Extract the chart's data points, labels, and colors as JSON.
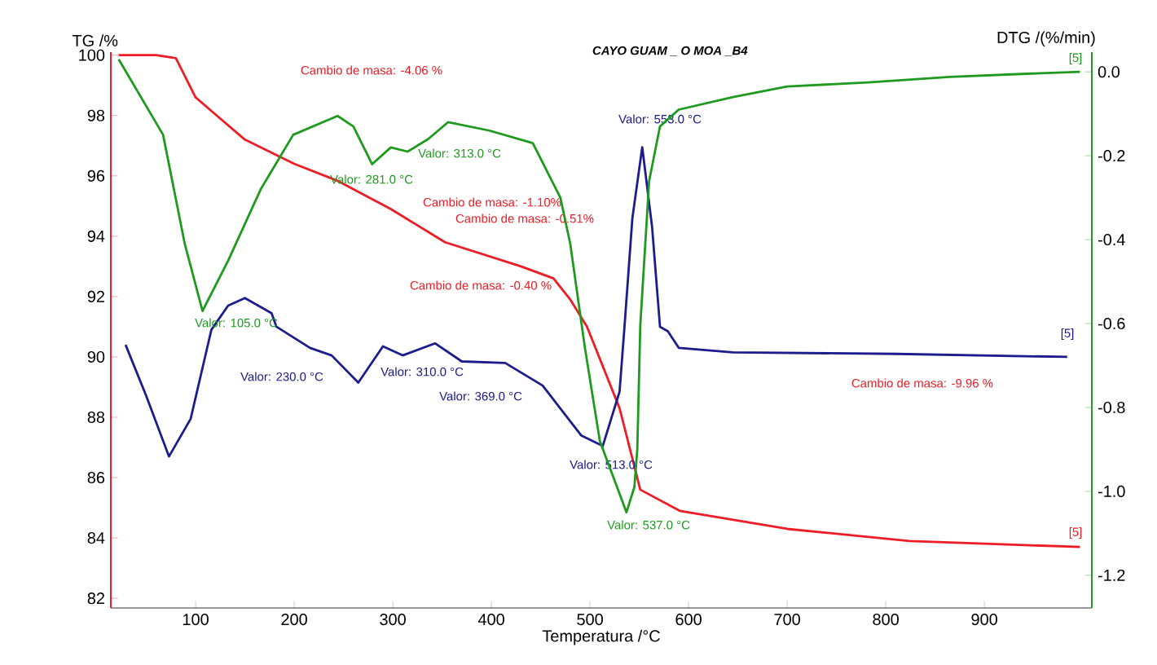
{
  "chart_data": {
    "type": "line",
    "title": "CAYO GUAM _ O MOA _B4",
    "xlabel": "Temperatura /°C",
    "ylabel": "TG /%",
    "y2label": "DTG /(%/min)",
    "xlim": [
      14,
      1009
    ],
    "xticks": [
      100,
      200,
      300,
      400,
      500,
      600,
      700,
      800,
      900
    ],
    "ylim": [
      81.68,
      100.1
    ],
    "yticks": [
      82,
      84,
      86,
      88,
      90,
      92,
      94,
      96,
      98,
      100
    ],
    "y2lim": [
      -1.278,
      0.047
    ],
    "y2ticks": [
      {
        "value": 0,
        "label": "0.0"
      },
      {
        "value": -0.2,
        "label": "-0.2"
      },
      {
        "value": -0.4,
        "label": "-0.4"
      },
      {
        "value": -0.6,
        "label": "-0.6"
      },
      {
        "value": -0.8,
        "label": "-0.8"
      },
      {
        "value": -1.0,
        "label": "-1.0"
      },
      {
        "value": -1.2,
        "label": "-1.2"
      }
    ],
    "series": [
      {
        "color": "#ee1c25",
        "x": [
          22,
          60,
          80,
          100,
          150,
          200,
          243,
          298,
          353,
          430,
          463,
          480,
          497,
          530,
          551,
          591,
          700,
          824,
          997
        ],
        "values": [
          100,
          100,
          99.9,
          98.6,
          97.2,
          96.4,
          95.85,
          94.9,
          93.8,
          93.0,
          92.6,
          91.9,
          91.0,
          88.3,
          85.6,
          84.9,
          84.3,
          83.9,
          83.7
        ]
      },
      {
        "color": "#1e9a1e",
        "axis": "y2",
        "x": [
          22,
          67,
          89,
          107,
          133,
          166,
          199,
          244,
          260,
          279,
          298,
          315,
          336,
          356,
          398,
          442,
          470,
          480,
          495,
          510,
          537,
          545,
          548,
          551,
          560,
          571,
          590,
          645,
          700,
          782,
          865,
          948,
          997
        ],
        "values": [
          0.03,
          -0.15,
          -0.41,
          -0.57,
          -0.45,
          -0.28,
          -0.15,
          -0.105,
          -0.13,
          -0.22,
          -0.18,
          -0.19,
          -0.16,
          -0.12,
          -0.14,
          -0.17,
          -0.3,
          -0.41,
          -0.66,
          -0.88,
          -1.05,
          -0.99,
          -0.9,
          -0.605,
          -0.26,
          -0.13,
          -0.09,
          -0.06,
          -0.035,
          -0.025,
          -0.012,
          -0.004,
          0.0
        ]
      },
      {
        "color": "#1c1c8c",
        "x": [
          29,
          50,
          73,
          95,
          116,
          133,
          150,
          177,
          182,
          216,
          238,
          265,
          290,
          310,
          343,
          370,
          414,
          452,
          491,
          513,
          530,
          535,
          543,
          553,
          563,
          571,
          579,
          590,
          645,
          811,
          984
        ],
        "values": [
          90.4,
          88.7,
          86.7,
          87.95,
          90.9,
          91.7,
          91.95,
          91.45,
          91.0,
          90.3,
          90.05,
          89.15,
          90.35,
          90.05,
          90.45,
          89.85,
          89.8,
          89.05,
          87.4,
          87.05,
          88.85,
          91.0,
          94.6,
          96.95,
          94.3,
          91.0,
          90.85,
          90.3,
          90.15,
          90.1,
          90.0
        ]
      }
    ],
    "annotations": [
      "Cambio de masa: -4.06 %",
      "Valor: 313.0 °C",
      "Valor: 281.0 °C",
      "Cambio de masa: -1.10%",
      "Cambio de masa: -0.51%",
      "Cambio de masa: -0.40 %",
      "Valor: 105.0 °C",
      "Valor: 553.0 °C",
      "Valor: 230.0 °C",
      "Valor: 310.0 °C",
      "Valor: 369.0 °C",
      "Valor: 513.0 °C",
      "Valor: 537.0 °C",
      "Cambio de masa: -9.96 %",
      "[5]",
      "[5]",
      "[5]"
    ]
  }
}
